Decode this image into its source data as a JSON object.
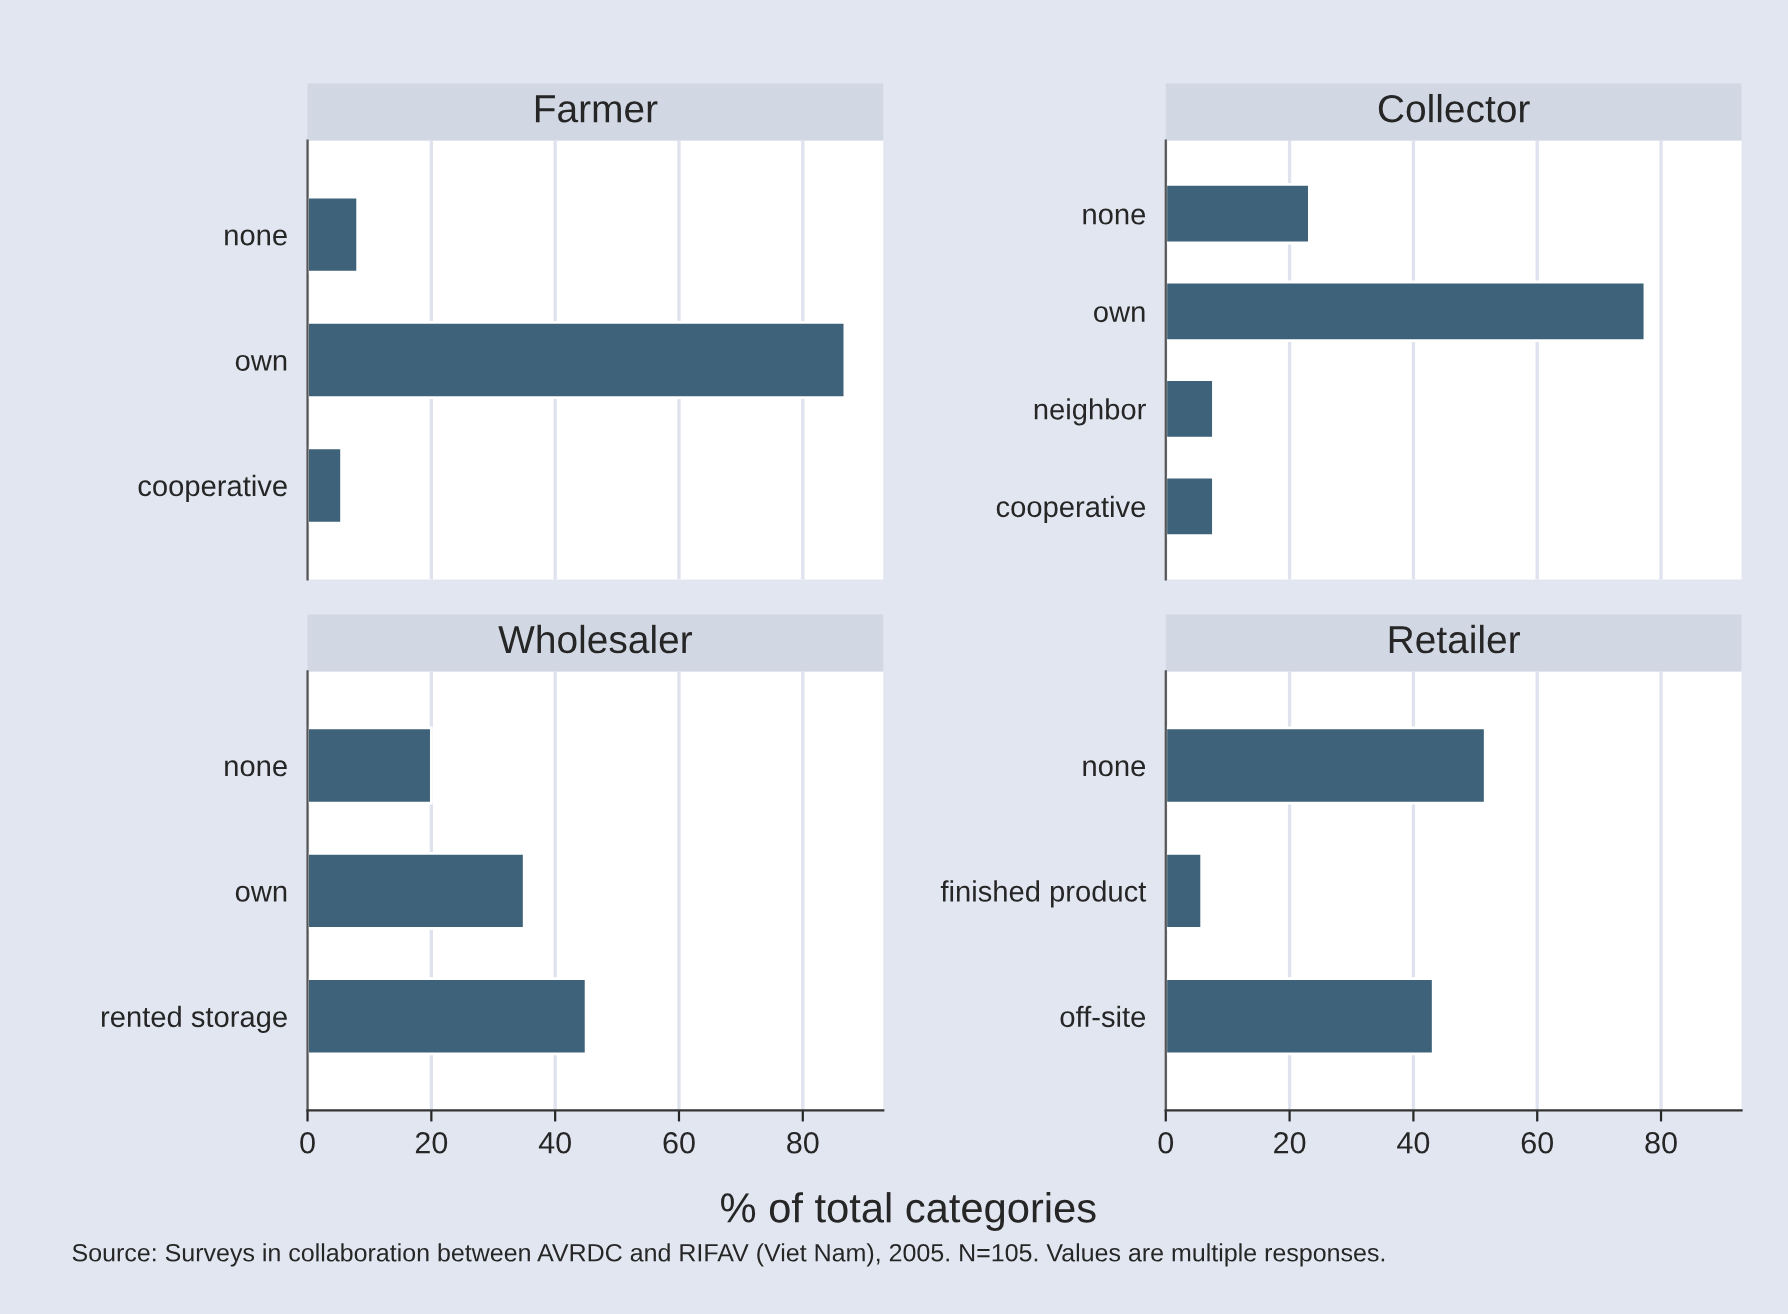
{
  "chart_data": [
    {
      "type": "bar",
      "orientation": "horizontal",
      "title": "Farmer",
      "categories": [
        "none",
        "own",
        "cooperative"
      ],
      "values": [
        8.1,
        86.8,
        5.5
      ],
      "color": "#3e6279",
      "xlim": [
        0,
        93
      ],
      "xticks": [
        0,
        20,
        40,
        60,
        80
      ],
      "grid": "x",
      "tick_labels": "y"
    },
    {
      "type": "bar",
      "orientation": "horizontal",
      "title": "Collector",
      "categories": [
        "none",
        "own",
        "neighbor",
        "cooperative"
      ],
      "values": [
        23.2,
        77.4,
        7.7,
        7.7
      ],
      "color": "#3e6279",
      "xlim": [
        0,
        93
      ],
      "xticks": [
        0,
        20,
        40,
        60,
        80
      ],
      "grid": "x",
      "tick_labels": "y"
    },
    {
      "type": "bar",
      "orientation": "horizontal",
      "title": "Wholesaler",
      "categories": [
        "none",
        "own",
        "rented storage"
      ],
      "values": [
        20,
        35,
        45
      ],
      "color": "#3e6279",
      "xlim": [
        0,
        93
      ],
      "xticks": [
        0,
        20,
        40,
        60,
        80
      ],
      "grid": "x",
      "xlabel": "% of total categories"
    },
    {
      "type": "bar",
      "orientation": "horizontal",
      "title": "Retailer",
      "categories": [
        "none",
        "finished product",
        "off-site"
      ],
      "values": [
        51.6,
        5.8,
        43.2
      ],
      "color": "#3e6279",
      "xlim": [
        0,
        93
      ],
      "xticks": [
        0,
        20,
        40,
        60,
        80
      ],
      "grid": "x",
      "annotations": [
        "Source: Surveys in collaboration between AVRDC and RIFAV (Viet Nam), 2005. N=105. Values are multiple responses."
      ]
    }
  ]
}
